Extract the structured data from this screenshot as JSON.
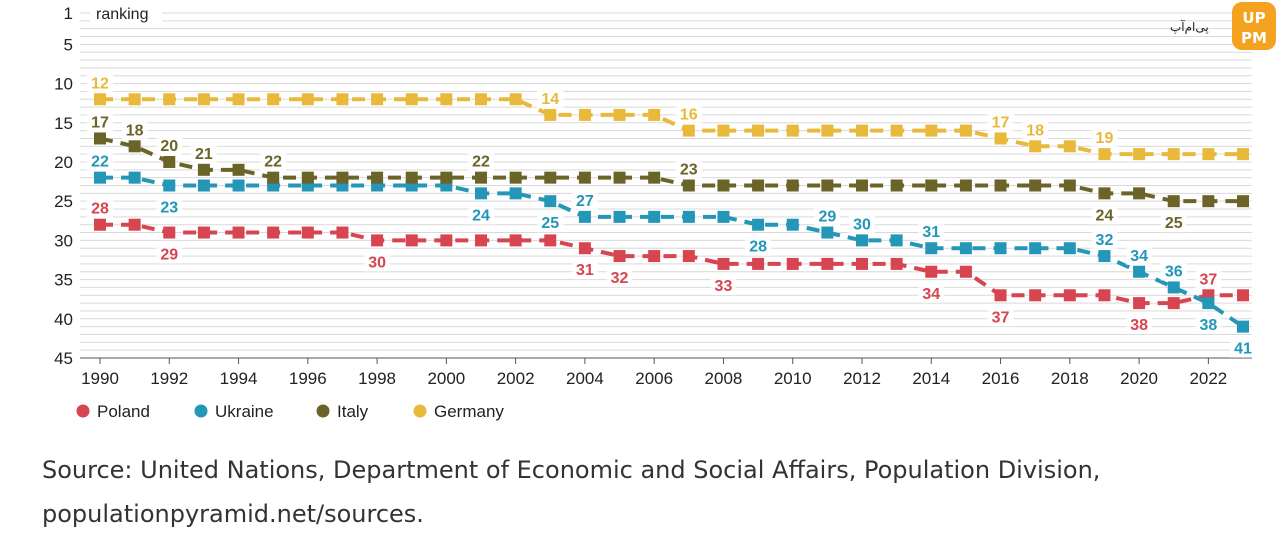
{
  "chart_data": {
    "type": "line",
    "title": "",
    "ylabel": "ranking",
    "xlabel": "",
    "y_inverted": true,
    "ylim": [
      1,
      45
    ],
    "yticks": [
      1,
      5,
      10,
      15,
      20,
      25,
      30,
      35,
      40,
      45
    ],
    "xlim": [
      1990,
      2023
    ],
    "xticks": [
      1990,
      1992,
      1994,
      1996,
      1998,
      2000,
      2002,
      2004,
      2006,
      2008,
      2010,
      2012,
      2014,
      2016,
      2018,
      2020,
      2022
    ],
    "grid": true,
    "legend_position": "bottom-left",
    "x": [
      1990,
      1991,
      1992,
      1993,
      1994,
      1995,
      1996,
      1997,
      1998,
      1999,
      2000,
      2001,
      2002,
      2003,
      2004,
      2005,
      2006,
      2007,
      2008,
      2009,
      2010,
      2011,
      2012,
      2013,
      2014,
      2015,
      2016,
      2017,
      2018,
      2019,
      2020,
      2021,
      2022,
      2023
    ],
    "series": [
      {
        "name": "Poland",
        "color": "#d64550",
        "values": [
          28,
          28,
          29,
          29,
          29,
          29,
          29,
          29,
          30,
          30,
          30,
          30,
          30,
          30,
          31,
          32,
          32,
          32,
          33,
          33,
          33,
          33,
          33,
          33,
          34,
          34,
          37,
          37,
          37,
          37,
          38,
          38,
          37,
          37
        ],
        "labels": [
          {
            "year": 1990,
            "text": "28",
            "pos": "above"
          },
          {
            "year": 1992,
            "text": "29",
            "pos": "below"
          },
          {
            "year": 1998,
            "text": "30",
            "pos": "below"
          },
          {
            "year": 2004,
            "text": "31",
            "pos": "below"
          },
          {
            "year": 2005,
            "text": "32",
            "pos": "below"
          },
          {
            "year": 2008,
            "text": "33",
            "pos": "below"
          },
          {
            "year": 2014,
            "text": "34",
            "pos": "below"
          },
          {
            "year": 2016,
            "text": "37",
            "pos": "below"
          },
          {
            "year": 2020,
            "text": "38",
            "pos": "below"
          },
          {
            "year": 2022,
            "text": "37",
            "pos": "above"
          }
        ]
      },
      {
        "name": "Ukraine",
        "color": "#2496b8",
        "values": [
          22,
          22,
          23,
          23,
          23,
          23,
          23,
          23,
          23,
          23,
          23,
          24,
          24,
          25,
          27,
          27,
          27,
          27,
          27,
          28,
          28,
          29,
          30,
          30,
          31,
          31,
          31,
          31,
          31,
          32,
          34,
          36,
          38,
          41
        ],
        "labels": [
          {
            "year": 1990,
            "text": "22",
            "pos": "above"
          },
          {
            "year": 1992,
            "text": "23",
            "pos": "below"
          },
          {
            "year": 2001,
            "text": "24",
            "pos": "below"
          },
          {
            "year": 2003,
            "text": "25",
            "pos": "below"
          },
          {
            "year": 2004,
            "text": "27",
            "pos": "above"
          },
          {
            "year": 2009,
            "text": "28",
            "pos": "below"
          },
          {
            "year": 2011,
            "text": "29",
            "pos": "above"
          },
          {
            "year": 2012,
            "text": "30",
            "pos": "above"
          },
          {
            "year": 2014,
            "text": "31",
            "pos": "above"
          },
          {
            "year": 2019,
            "text": "32",
            "pos": "above"
          },
          {
            "year": 2020,
            "text": "34",
            "pos": "above"
          },
          {
            "year": 2021,
            "text": "36",
            "pos": "above"
          },
          {
            "year": 2022,
            "text": "38",
            "pos": "below"
          },
          {
            "year": 2023,
            "text": "41",
            "pos": "below"
          }
        ]
      },
      {
        "name": "Italy",
        "color": "#6b6428",
        "values": [
          17,
          18,
          20,
          21,
          21,
          22,
          22,
          22,
          22,
          22,
          22,
          22,
          22,
          22,
          22,
          22,
          22,
          23,
          23,
          23,
          23,
          23,
          23,
          23,
          23,
          23,
          23,
          23,
          23,
          24,
          24,
          25,
          25,
          25
        ],
        "labels": [
          {
            "year": 1990,
            "text": "17",
            "pos": "above"
          },
          {
            "year": 1991,
            "text": "18",
            "pos": "above"
          },
          {
            "year": 1992,
            "text": "20",
            "pos": "above"
          },
          {
            "year": 1993,
            "text": "21",
            "pos": "above"
          },
          {
            "year": 1995,
            "text": "22",
            "pos": "above"
          },
          {
            "year": 2001,
            "text": "22",
            "pos": "above"
          },
          {
            "year": 2007,
            "text": "23",
            "pos": "above"
          },
          {
            "year": 2019,
            "text": "24",
            "pos": "below"
          },
          {
            "year": 2021,
            "text": "25",
            "pos": "below"
          }
        ]
      },
      {
        "name": "Germany",
        "color": "#e8b93a",
        "values": [
          12,
          12,
          12,
          12,
          12,
          12,
          12,
          12,
          12,
          12,
          12,
          12,
          12,
          14,
          14,
          14,
          14,
          16,
          16,
          16,
          16,
          16,
          16,
          16,
          16,
          16,
          17,
          18,
          18,
          19,
          19,
          19,
          19,
          19
        ],
        "labels": [
          {
            "year": 1990,
            "text": "12",
            "pos": "above"
          },
          {
            "year": 2003,
            "text": "14",
            "pos": "above"
          },
          {
            "year": 2007,
            "text": "16",
            "pos": "above"
          },
          {
            "year": 2016,
            "text": "17",
            "pos": "above"
          },
          {
            "year": 2017,
            "text": "18",
            "pos": "above"
          },
          {
            "year": 2019,
            "text": "19",
            "pos": "above"
          }
        ]
      }
    ]
  },
  "source_line1": "Source: United Nations, Department of Economic and Social Affairs, Population Division,",
  "source_line2": "populationpyramid.net/sources.",
  "watermark": {
    "text": "پی‌ام‌آپ",
    "badge": "UP PM"
  }
}
